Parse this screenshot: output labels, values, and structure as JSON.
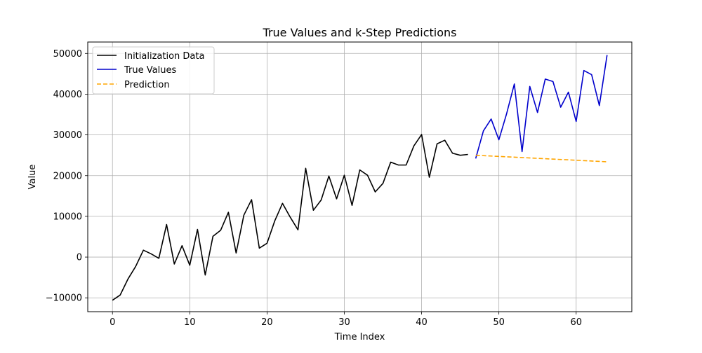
{
  "chart_data": {
    "type": "line",
    "title": "True Values and k-Step Predictions",
    "xlabel": "Time Index",
    "ylabel": "Value",
    "xlim": [
      -3.2,
      67.2
    ],
    "ylim": [
      -13400,
      52800
    ],
    "xticks": [
      0,
      10,
      20,
      30,
      40,
      50,
      60
    ],
    "yticks": [
      -10000,
      0,
      10000,
      20000,
      30000,
      40000,
      50000
    ],
    "ytick_labels": [
      "−10000",
      "0",
      "10000",
      "20000",
      "30000",
      "40000",
      "50000"
    ],
    "grid": true,
    "legend_position": "upper-left",
    "series": [
      {
        "name": "Initialization Data",
        "color": "#000000",
        "style": "solid",
        "x": [
          0,
          1,
          2,
          3,
          4,
          5,
          6,
          7,
          8,
          9,
          10,
          11,
          12,
          13,
          14,
          15,
          16,
          17,
          18,
          19,
          20,
          21,
          22,
          23,
          24,
          25,
          26,
          27,
          28,
          29,
          30,
          31,
          32,
          33,
          34,
          35,
          36,
          37,
          38,
          39,
          40,
          41,
          42,
          43,
          44,
          45,
          46
        ],
        "y": [
          -10600,
          -9300,
          -5400,
          -2300,
          1700,
          800,
          -300,
          8000,
          -1700,
          2800,
          -2000,
          6800,
          -4400,
          5100,
          6600,
          11000,
          1000,
          10300,
          14100,
          2200,
          3400,
          8900,
          13200,
          9800,
          6700,
          21800,
          11500,
          14000,
          19900,
          14300,
          20100,
          12700,
          21400,
          20100,
          16000,
          18100,
          23300,
          22600,
          22600,
          27300,
          30100,
          19600,
          27800,
          28700,
          25500,
          25000,
          25200
        ]
      },
      {
        "name": "True Values",
        "color": "#0000cc",
        "style": "solid",
        "x": [
          47,
          48,
          49,
          50,
          51,
          52,
          53,
          54,
          55,
          56,
          57,
          58,
          59,
          60,
          61,
          62,
          63,
          64
        ],
        "y": [
          24200,
          31000,
          33900,
          28800,
          35200,
          42500,
          25900,
          41900,
          35500,
          43700,
          43100,
          36800,
          40500,
          33300,
          45800,
          44800,
          37200,
          49600
        ]
      },
      {
        "name": "Prediction",
        "color": "#ffa500",
        "style": "dashed",
        "x": [
          47,
          64
        ],
        "y": [
          25000,
          23400
        ]
      }
    ]
  }
}
